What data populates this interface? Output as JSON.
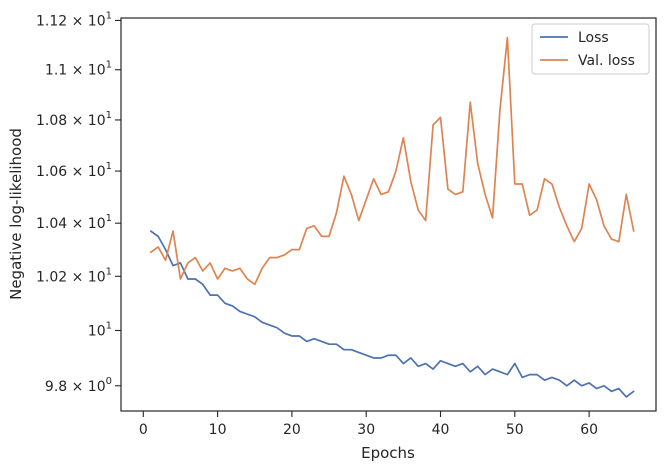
{
  "chart_data": {
    "type": "line",
    "title": "",
    "xlabel": "Epochs",
    "ylabel": "Negative log-likelihood",
    "y_scale": "log",
    "xlim": [
      -3,
      69
    ],
    "ylim": [
      9.71,
      11.21
    ],
    "x_ticks": [
      0,
      10,
      20,
      30,
      40,
      50,
      60
    ],
    "x_tick_labels": [
      "0",
      "10",
      "20",
      "30",
      "40",
      "50",
      "60"
    ],
    "y_ticks": [
      {
        "value": 9.8,
        "mantissa": "9.8",
        "base": "10",
        "exponent": "0"
      },
      {
        "value": 10.0,
        "mantissa": "",
        "base": "10",
        "exponent": "1"
      },
      {
        "value": 10.2,
        "mantissa": "1.02",
        "base": "10",
        "exponent": "1"
      },
      {
        "value": 10.4,
        "mantissa": "1.04",
        "base": "10",
        "exponent": "1"
      },
      {
        "value": 10.6,
        "mantissa": "1.06",
        "base": "10",
        "exponent": "1"
      },
      {
        "value": 10.8,
        "mantissa": "1.08",
        "base": "10",
        "exponent": "1"
      },
      {
        "value": 11.0,
        "mantissa": "1.1",
        "base": "10",
        "exponent": "1"
      },
      {
        "value": 11.2,
        "mantissa": "1.12",
        "base": "10",
        "exponent": "1"
      }
    ],
    "times_symbol": "×",
    "grid": false,
    "legend_position": "top-right",
    "series": [
      {
        "name": "Loss",
        "color": "#4c72b0",
        "x": [
          1,
          2,
          3,
          4,
          5,
          6,
          7,
          8,
          9,
          10,
          11,
          12,
          13,
          14,
          15,
          16,
          17,
          18,
          19,
          20,
          21,
          22,
          23,
          24,
          25,
          26,
          27,
          28,
          29,
          30,
          31,
          32,
          33,
          34,
          35,
          36,
          37,
          38,
          39,
          40,
          41,
          42,
          43,
          44,
          45,
          46,
          47,
          48,
          49,
          50,
          51,
          52,
          53,
          54,
          55,
          56,
          57,
          58,
          59,
          60,
          61,
          62,
          63,
          64,
          65,
          66
        ],
        "values": [
          10.37,
          10.35,
          10.3,
          10.24,
          10.25,
          10.19,
          10.19,
          10.17,
          10.13,
          10.13,
          10.1,
          10.09,
          10.07,
          10.06,
          10.05,
          10.03,
          10.02,
          10.01,
          9.99,
          9.98,
          9.98,
          9.96,
          9.97,
          9.96,
          9.95,
          9.95,
          9.93,
          9.93,
          9.92,
          9.91,
          9.9,
          9.9,
          9.91,
          9.91,
          9.88,
          9.9,
          9.87,
          9.88,
          9.86,
          9.89,
          9.88,
          9.87,
          9.88,
          9.85,
          9.87,
          9.84,
          9.86,
          9.85,
          9.84,
          9.88,
          9.83,
          9.84,
          9.84,
          9.82,
          9.83,
          9.82,
          9.8,
          9.82,
          9.8,
          9.81,
          9.79,
          9.8,
          9.78,
          9.79,
          9.76,
          9.78
        ]
      },
      {
        "name": "Val. loss",
        "color": "#dd8452",
        "x": [
          1,
          2,
          3,
          4,
          5,
          6,
          7,
          8,
          9,
          10,
          11,
          12,
          13,
          14,
          15,
          16,
          17,
          18,
          19,
          20,
          21,
          22,
          23,
          24,
          25,
          26,
          27,
          28,
          29,
          30,
          31,
          32,
          33,
          34,
          35,
          36,
          37,
          38,
          39,
          40,
          41,
          42,
          43,
          44,
          45,
          46,
          47,
          48,
          49,
          50,
          51,
          52,
          53,
          54,
          55,
          56,
          57,
          58,
          59,
          60,
          61,
          62,
          63,
          64,
          65,
          66
        ],
        "values": [
          10.29,
          10.31,
          10.26,
          10.37,
          10.19,
          10.25,
          10.27,
          10.22,
          10.25,
          10.19,
          10.23,
          10.22,
          10.23,
          10.19,
          10.17,
          10.23,
          10.27,
          10.27,
          10.28,
          10.3,
          10.3,
          10.38,
          10.39,
          10.35,
          10.35,
          10.44,
          10.58,
          10.51,
          10.41,
          10.49,
          10.57,
          10.51,
          10.52,
          10.6,
          10.73,
          10.56,
          10.45,
          10.41,
          10.78,
          10.81,
          10.53,
          10.51,
          10.52,
          10.87,
          10.63,
          10.51,
          10.42,
          10.84,
          11.13,
          10.55,
          10.55,
          10.43,
          10.45,
          10.57,
          10.55,
          10.46,
          10.39,
          10.33,
          10.38,
          10.55,
          10.49,
          10.39,
          10.34,
          10.33,
          10.51,
          10.37
        ]
      }
    ]
  }
}
